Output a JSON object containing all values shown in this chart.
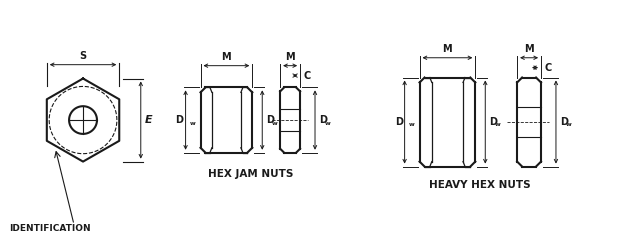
{
  "background_color": "#ffffff",
  "line_color": "#1a1a1a",
  "label_S": "S",
  "label_E": "E",
  "label_M": "M",
  "label_C": "C",
  "label_Dw": "D",
  "label_Dw_sub": "w",
  "label_identification": "IDENTIFICATION",
  "label_hex_jam": "HEX JAM NUTS",
  "label_heavy_hex": "HEAVY HEX NUTS",
  "font_size_label": 7,
  "font_size_caption": 7.5
}
